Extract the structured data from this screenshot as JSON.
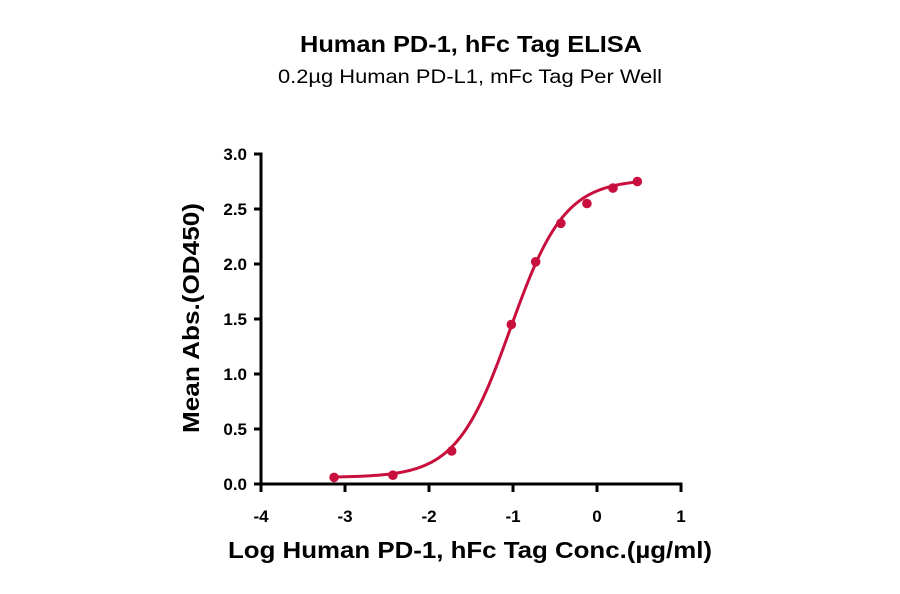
{
  "chart_data": {
    "type": "scatter",
    "title": "Human PD-1, hFc Tag ELISA",
    "subtitle": "0.2µg Human PD-L1, mFc Tag Per Well",
    "xlabel": "Log Human PD-1, hFc Tag Conc.(µg/ml)",
    "ylabel": "Mean Abs.(OD450)",
    "xlim": [
      -4,
      1
    ],
    "ylim": [
      0,
      3.0
    ],
    "xticks": [
      "-4",
      "-3",
      "-2",
      "-1",
      "0",
      "1"
    ],
    "xtick_values": [
      -4,
      -3,
      -2,
      -1,
      0,
      1
    ],
    "yticks": [
      "0.0",
      "0.5",
      "1.0",
      "1.5",
      "2.0",
      "2.5",
      "3.0"
    ],
    "ytick_values": [
      0,
      0.5,
      1.0,
      1.5,
      2.0,
      2.5,
      3.0
    ],
    "grid": false,
    "legend": null,
    "series": [
      {
        "name": "Human PD-1, hFc Tag",
        "color": "#c8103e",
        "x": [
          -3.13,
          -2.43,
          -1.73,
          -1.02,
          -0.73,
          -0.43,
          -0.12,
          0.19,
          0.48
        ],
        "y": [
          0.06,
          0.08,
          0.3,
          1.45,
          2.02,
          2.37,
          2.55,
          2.69,
          2.75
        ],
        "fit": {
          "model": "4PL sigmoidal",
          "bottom": 0.06,
          "top": 2.77,
          "logEC50": -1.03,
          "hill_slope": 1.35
        }
      }
    ]
  }
}
